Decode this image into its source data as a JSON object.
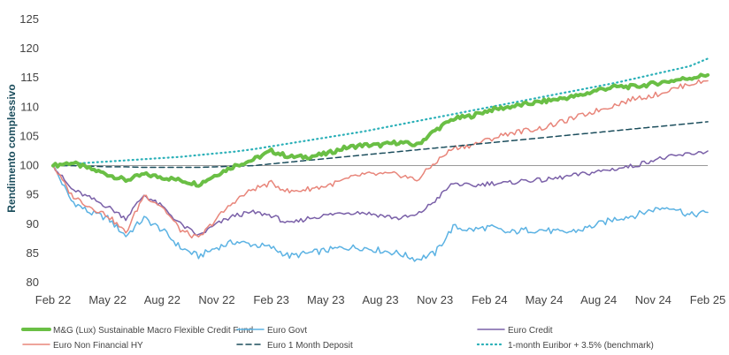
{
  "chart_data": {
    "type": "line",
    "ylabel": "Rendimento complessivo",
    "xlabel": "",
    "ylim": [
      80,
      125
    ],
    "yticks": [
      80,
      85,
      90,
      95,
      100,
      105,
      110,
      115,
      120,
      125
    ],
    "x_ticks": [
      "Feb 22",
      "May 22",
      "Aug 22",
      "Nov 22",
      "Feb 23",
      "May 23",
      "Aug 23",
      "Nov 23",
      "Feb 24",
      "May 24",
      "Aug 24",
      "Nov 24",
      "Feb 25"
    ],
    "x": [
      "Feb 22",
      "Mar 22",
      "Apr 22",
      "May 22",
      "Jun 22",
      "Jul 22",
      "Aug 22",
      "Sep 22",
      "Oct 22",
      "Nov 22",
      "Dec 22",
      "Jan 23",
      "Feb 23",
      "Mar 23",
      "Apr 23",
      "May 23",
      "Jun 23",
      "Jul 23",
      "Aug 23",
      "Sep 23",
      "Oct 23",
      "Nov 23",
      "Dec 23",
      "Jan 24",
      "Feb 24",
      "Mar 24",
      "Apr 24",
      "May 24",
      "Jun 24",
      "Jul 24",
      "Aug 24",
      "Sep 24",
      "Oct 24",
      "Nov 24",
      "Dec 24",
      "Jan 25",
      "Feb 25"
    ],
    "baseline": 100,
    "grid": false,
    "legend_position": "bottom",
    "series": [
      {
        "name": "M&G (Lux) Sustainable Macro Flexible Credit Fund",
        "color": "#6abf45",
        "style": "solid",
        "width": 4,
        "values": [
          100,
          100.5,
          99.5,
          98.5,
          97.5,
          98.5,
          98,
          97.5,
          96.8,
          98.5,
          100,
          101,
          102.5,
          101.5,
          101.5,
          102,
          103,
          103.5,
          103.5,
          104,
          103.5,
          106,
          108,
          108.5,
          109.5,
          110,
          110.5,
          111,
          111.5,
          112,
          113,
          113.5,
          113.5,
          114,
          114.5,
          115,
          115.5
        ]
      },
      {
        "name": "Euro Govt",
        "color": "#5bb2e3",
        "style": "solid",
        "width": 1.5,
        "values": [
          100,
          94,
          92,
          91,
          88,
          91,
          89,
          86,
          84.5,
          86,
          87,
          86.5,
          86,
          84.5,
          85,
          85.5,
          86,
          86,
          85.5,
          85,
          84,
          85,
          89.5,
          89,
          89.5,
          88.5,
          89,
          89,
          88.5,
          89,
          90,
          91,
          91.5,
          92.5,
          93,
          91.5,
          92
        ]
      },
      {
        "name": "Euro Credit",
        "color": "#7a60a8",
        "style": "solid",
        "width": 1.5,
        "values": [
          100,
          96,
          94.5,
          93,
          91,
          95,
          93,
          90,
          88,
          90,
          91.5,
          92,
          91.5,
          90,
          91,
          91.5,
          92,
          92,
          91.5,
          91,
          91.5,
          94,
          97,
          96.5,
          97,
          97,
          97.5,
          97.5,
          98,
          98.5,
          99,
          99.5,
          100,
          101,
          101.5,
          102,
          102.5
        ]
      },
      {
        "name": "Euro Non Financial HY",
        "color": "#e8857a",
        "style": "solid",
        "width": 1.5,
        "values": [
          100,
          95,
          93,
          91.5,
          88.5,
          95,
          93,
          89,
          87.5,
          91,
          94,
          96,
          97,
          95.5,
          96,
          96.5,
          97.5,
          98.5,
          98.5,
          98.5,
          97.5,
          100.5,
          103,
          103.5,
          104.5,
          105.5,
          106,
          106.5,
          107.5,
          108.5,
          109.5,
          110.5,
          111.5,
          112,
          113,
          114,
          114.5
        ]
      },
      {
        "name": "Euro 1 Month Deposit",
        "color": "#1b4d5c",
        "style": "dashed",
        "width": 1.5,
        "values": [
          100,
          100,
          99.9,
          99.8,
          99.8,
          99.7,
          99.7,
          99.7,
          99.7,
          99.8,
          99.9,
          100,
          100.3,
          100.6,
          100.9,
          101.2,
          101.5,
          101.8,
          102.1,
          102.4,
          102.7,
          103,
          103.3,
          103.6,
          103.9,
          104.2,
          104.5,
          104.8,
          105.1,
          105.4,
          105.7,
          106,
          106.3,
          106.6,
          106.9,
          107.2,
          107.5
        ]
      },
      {
        "name": "1-month Euribor + 3.5% (benchmark)",
        "color": "#2bb0b8",
        "style": "dotted",
        "width": 2.2,
        "values": [
          100,
          100.3,
          100.5,
          100.7,
          100.9,
          101.1,
          101.3,
          101.5,
          101.8,
          102.1,
          102.4,
          102.8,
          103.3,
          103.8,
          104.3,
          104.8,
          105.3,
          105.8,
          106.4,
          107,
          107.6,
          108.2,
          108.8,
          109.4,
          110,
          110.6,
          111.2,
          111.8,
          112.4,
          113,
          113.6,
          114.2,
          114.9,
          115.6,
          116.3,
          117,
          118.3
        ]
      }
    ]
  }
}
